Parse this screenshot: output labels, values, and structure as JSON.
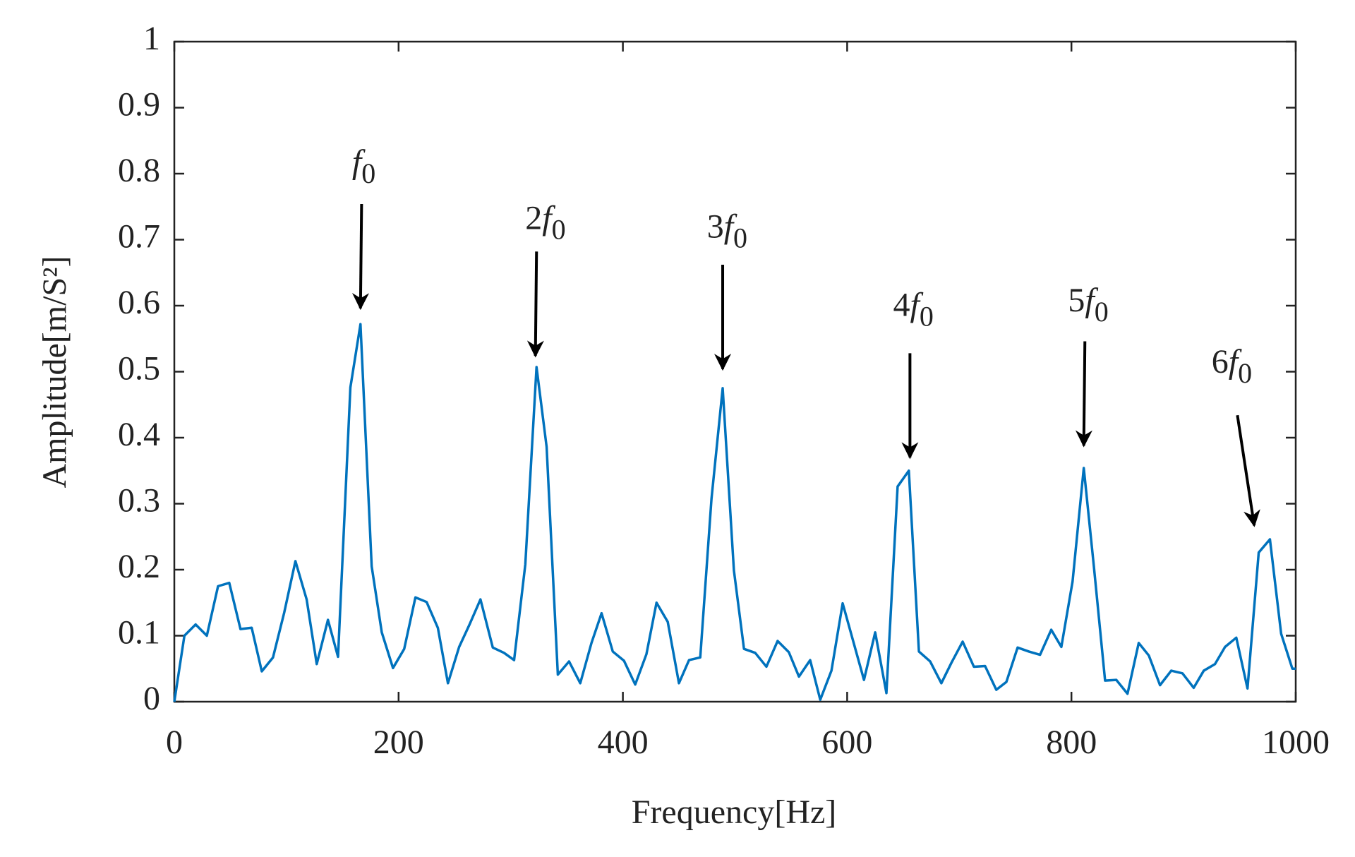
{
  "chart_data": {
    "type": "line",
    "xlabel": "Frequency[Hz]",
    "ylabel": "Amplitude[m/S²]",
    "xlim": [
      0,
      1000
    ],
    "ylim": [
      0,
      1
    ],
    "xticks": [
      0,
      200,
      400,
      600,
      800,
      1000
    ],
    "yticks": [
      0,
      0.1,
      0.2,
      0.3,
      0.4,
      0.5,
      0.6,
      0.7,
      0.8,
      0.9,
      1
    ],
    "grid": false,
    "series": [
      {
        "color": "#0072bd",
        "x": [
          0,
          9,
          19,
          29,
          39,
          49,
          59,
          69,
          78,
          88,
          98,
          108,
          118,
          127,
          137,
          146,
          157,
          166,
          176,
          185,
          195,
          205,
          215,
          225,
          235,
          244,
          254,
          263,
          273,
          284,
          294,
          303,
          313,
          323,
          332,
          342,
          352,
          362,
          372,
          381,
          391,
          401,
          411,
          421,
          430,
          440,
          450,
          459,
          469,
          479,
          489,
          499,
          508,
          518,
          528,
          538,
          548,
          557,
          567,
          576,
          586,
          596,
          606,
          615,
          625,
          635,
          645,
          655,
          664,
          674,
          684,
          693,
          703,
          713,
          723,
          733,
          742,
          752,
          762,
          772,
          782,
          791,
          801,
          811,
          820,
          830,
          840,
          850,
          860,
          869,
          879,
          889,
          899,
          909,
          918,
          928,
          937,
          947,
          957,
          967,
          977,
          987,
          997,
          1000
        ],
        "values": [
          0,
          0.1,
          0.117,
          0.1,
          0.175,
          0.18,
          0.11,
          0.112,
          0.046,
          0.067,
          0.135,
          0.213,
          0.155,
          0.057,
          0.124,
          0.068,
          0.476,
          0.572,
          0.205,
          0.105,
          0.051,
          0.08,
          0.158,
          0.151,
          0.112,
          0.028,
          0.083,
          0.116,
          0.155,
          0.082,
          0.074,
          0.063,
          0.208,
          0.507,
          0.386,
          0.041,
          0.061,
          0.028,
          0.089,
          0.134,
          0.076,
          0.062,
          0.026,
          0.072,
          0.15,
          0.121,
          0.028,
          0.063,
          0.067,
          0.307,
          0.475,
          0.199,
          0.08,
          0.074,
          0.053,
          0.092,
          0.075,
          0.038,
          0.063,
          0.003,
          0.047,
          0.149,
          0.088,
          0.033,
          0.105,
          0.013,
          0.326,
          0.35,
          0.076,
          0.061,
          0.028,
          0.059,
          0.091,
          0.053,
          0.054,
          0.018,
          0.03,
          0.082,
          0.076,
          0.071,
          0.109,
          0.083,
          0.182,
          0.354,
          0.205,
          0.032,
          0.033,
          0.012,
          0.089,
          0.07,
          0.025,
          0.047,
          0.043,
          0.021,
          0.047,
          0.057,
          0.083,
          0.097,
          0.02,
          0.226,
          0.246,
          0.103,
          0.05,
          0.05
        ]
      }
    ],
    "annotations": [
      {
        "var": "f",
        "sub": "0",
        "xy": [
          166,
          0.596
        ],
        "xytext": [
          167,
          0.754
        ],
        "label_at": [
          169,
          0.813
        ]
      },
      {
        "prefix": "2",
        "var": "f",
        "sub": "0",
        "xy": [
          322,
          0.524
        ],
        "xytext": [
          323,
          0.682
        ],
        "label_at": [
          331,
          0.728
        ]
      },
      {
        "prefix": "3",
        "var": "f",
        "sub": "0",
        "xy": [
          489,
          0.504
        ],
        "xytext": [
          489,
          0.662
        ],
        "label_at": [
          493,
          0.715
        ]
      },
      {
        "prefix": "4",
        "var": "f",
        "sub": "0",
        "xy": [
          656,
          0.37
        ],
        "xytext": [
          656,
          0.528
        ],
        "label_at": [
          659,
          0.596
        ]
      },
      {
        "prefix": "5",
        "var": "f",
        "sub": "0",
        "xy": [
          811,
          0.388
        ],
        "xytext": [
          812,
          0.546
        ],
        "label_at": [
          815,
          0.603
        ]
      },
      {
        "prefix": "6",
        "var": "f",
        "sub": "0",
        "xy": [
          963,
          0.267
        ],
        "xytext": [
          948,
          0.434
        ],
        "label_at": [
          943,
          0.51
        ]
      }
    ]
  }
}
